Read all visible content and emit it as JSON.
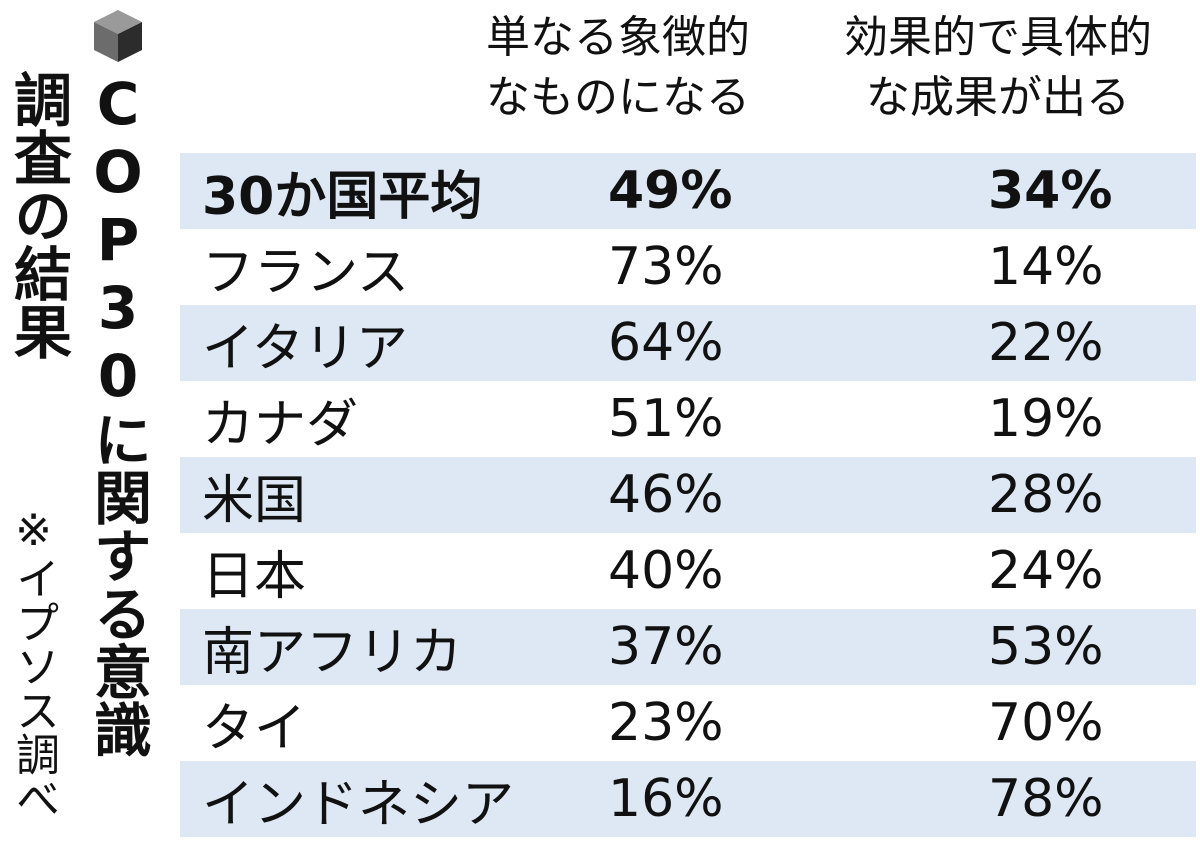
{
  "title_main": "COP30に関する意識",
  "title_sub": "調査の結果",
  "source_note": "※イプソス調べ",
  "icon": "cube-icon",
  "colors": {
    "row_shade": "#dde8f4",
    "text": "#111111"
  },
  "chart_data": {
    "type": "table",
    "columns": [
      "単なる象徴的\nなものになる",
      "効果的で具体的\nな成果が出る"
    ],
    "rows": [
      {
        "country": "30か国平均",
        "v1": "49%",
        "v2": "34%"
      },
      {
        "country": "フランス",
        "v1": "73%",
        "v2": "14%"
      },
      {
        "country": "イタリア",
        "v1": "64%",
        "v2": "22%"
      },
      {
        "country": "カナダ",
        "v1": "51%",
        "v2": "19%"
      },
      {
        "country": "米国",
        "v1": "46%",
        "v2": "28%"
      },
      {
        "country": "日本",
        "v1": "40%",
        "v2": "24%"
      },
      {
        "country": "南アフリカ",
        "v1": "37%",
        "v2": "53%"
      },
      {
        "country": "タイ",
        "v1": "23%",
        "v2": "70%"
      },
      {
        "country": "インドネシア",
        "v1": "16%",
        "v2": "78%"
      }
    ]
  }
}
